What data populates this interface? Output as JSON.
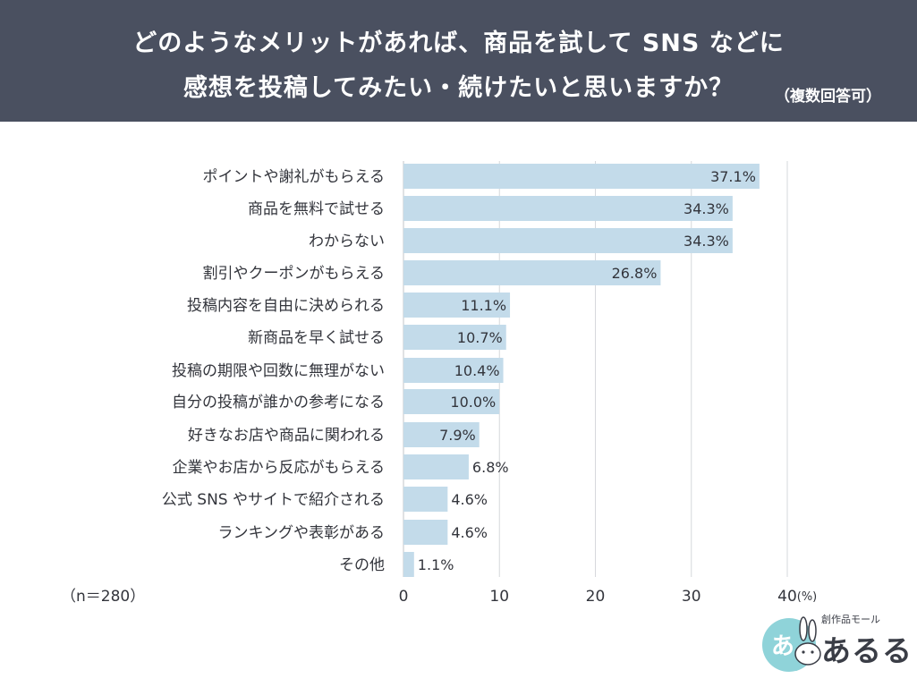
{
  "header": {
    "title_line1": "どのようなメリットがあれば、商品を試して SNS などに",
    "title_line2": "感想を投稿してみたい・続けたいと思いますか？",
    "note": "（複数回答可）"
  },
  "sample_size": "（n＝280）",
  "logo": {
    "subtitle": "創作品モール",
    "name": "あるる",
    "badge_text": "あ"
  },
  "colors": {
    "header_bg": "#4a5060",
    "bar": "#c3dbea",
    "grid": "#d6d8dc",
    "text": "#33353c",
    "logo_circle": "#8fd3d9"
  },
  "chart_data": {
    "type": "bar",
    "orientation": "horizontal",
    "categories": [
      "ポイントや謝礼がもらえる",
      "商品を無料で試せる",
      "わからない",
      "割引やクーポンがもらえる",
      "投稿内容を自由に決められる",
      "新商品を早く試せる",
      "投稿の期限や回数に無理がない",
      "自分の投稿が誰かの参考になる",
      "好きなお店や商品に関われる",
      "企業やお店から反応がもらえる",
      "公式 SNS やサイトで紹介される",
      "ランキングや表彰がある",
      "その他"
    ],
    "values": [
      37.1,
      34.3,
      34.3,
      26.8,
      11.1,
      10.7,
      10.4,
      10.0,
      7.9,
      6.8,
      4.6,
      4.6,
      1.1
    ],
    "value_labels": [
      "37.1%",
      "34.3%",
      "34.3%",
      "26.8%",
      "11.1%",
      "10.7%",
      "10.4%",
      "10.0%",
      "7.9%",
      "6.8%",
      "4.6%",
      "4.6%",
      "1.1%"
    ],
    "xlim": [
      0,
      40
    ],
    "xticks": [
      "0",
      "10",
      "20",
      "30",
      "40"
    ],
    "xunit": "(%)",
    "grid": true
  }
}
